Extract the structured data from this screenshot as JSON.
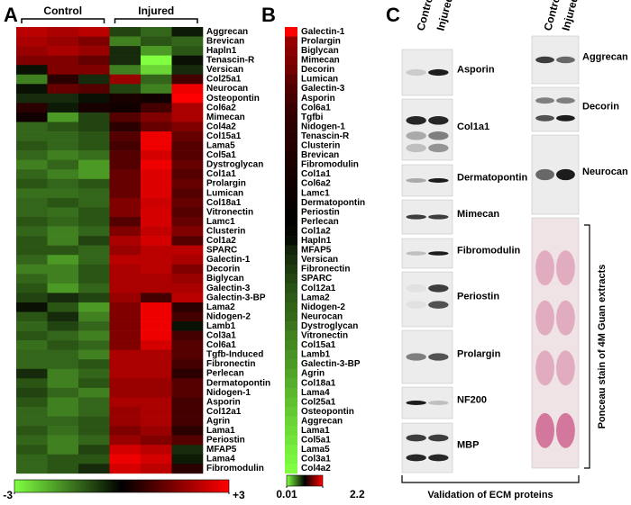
{
  "panel_labels": [
    "A",
    "B",
    "C"
  ],
  "chart_data": [
    {
      "type": "heatmap",
      "group_labels": [
        "Control",
        "Injured"
      ],
      "rows": [
        "Aggrecan",
        "Brevican",
        "Hapln1",
        "Tenascin-R",
        "Versican",
        "Col25a1",
        "Neurocan",
        "Osteopontin",
        "Col6a2",
        "Mimecan",
        "Col4a2",
        "Col15a1",
        "Lama5",
        "Col5a1",
        "Dystroglycan",
        "Col1a1",
        "Prolargin",
        "Lumican",
        "Col18a1",
        "Vitronectin",
        "Lamc1",
        "Clusterin",
        "Col1a2",
        "SPARC",
        "Galectin-1",
        "Decorin",
        "Biglycan",
        "Galectin-3",
        "Galectin-3-BP",
        "Lama2",
        "Nidogen-2",
        "Lamb1",
        "Col3a1",
        "Col6a1",
        "Tgfb-Induced",
        "Fibronectin",
        "Perlecan",
        "Dermatopontin",
        "Nidogen-1",
        "Asporin",
        "Col12a1",
        "Agrin",
        "Lama1",
        "Periostin",
        "MFAP5",
        "Lama4",
        "Fibromodulin"
      ],
      "values": [
        [
          2.2,
          2.0,
          2.2,
          -0.8,
          -1.2,
          -0.3
        ],
        [
          2.0,
          1.8,
          1.5,
          -1.5,
          -1.0,
          -1.2
        ],
        [
          1.8,
          2.0,
          1.8,
          -0.5,
          -1.8,
          -1.0
        ],
        [
          1.5,
          1.5,
          1.2,
          -0.5,
          -3,
          -0.2
        ],
        [
          -0.2,
          1.5,
          1.5,
          -1.5,
          -2.5,
          -0.5
        ],
        [
          -1.5,
          0.5,
          -0.5,
          1.8,
          -1.2,
          0.8
        ],
        [
          -0.2,
          1.2,
          1.0,
          -0.8,
          -1.5,
          2.8
        ],
        [
          -0.5,
          -0.5,
          -0.2,
          0.3,
          0.2,
          3
        ],
        [
          0.5,
          -0.3,
          0.3,
          0.2,
          0.8,
          2.0
        ],
        [
          0.2,
          -1.8,
          -0.8,
          1.0,
          1.5,
          2.0
        ],
        [
          -1.2,
          -1.0,
          -0.8,
          0.5,
          1.2,
          1.5
        ],
        [
          -1.2,
          -1.2,
          -1.0,
          1.0,
          2.8,
          1.2
        ],
        [
          -1.0,
          -1.2,
          -1.0,
          0.8,
          2.8,
          1.0
        ],
        [
          -1.2,
          -1.5,
          -1.3,
          1.0,
          2.5,
          1.0
        ],
        [
          -1.5,
          -1.2,
          -1.8,
          1.0,
          2.8,
          1.2
        ],
        [
          -1.2,
          -1.5,
          -1.8,
          1.2,
          2.6,
          1.0
        ],
        [
          -1.0,
          -1.2,
          -1.0,
          1.2,
          2.6,
          1.2
        ],
        [
          -1.3,
          -1.3,
          -1.2,
          1.2,
          2.6,
          1.0
        ],
        [
          -1.2,
          -1.0,
          -1.2,
          1.5,
          2.4,
          1.2
        ],
        [
          -1.2,
          -1.3,
          -1.0,
          1.5,
          2.5,
          1.0
        ],
        [
          -1.0,
          -1.2,
          -1.0,
          1.0,
          2.5,
          1.2
        ],
        [
          -1.2,
          -1.5,
          -1.2,
          1.5,
          2.3,
          1.5
        ],
        [
          -1.0,
          -1.5,
          -0.8,
          2.0,
          2.5,
          1.0
        ],
        [
          -1.0,
          -1.0,
          -1.2,
          1.8,
          2.2,
          2.2
        ],
        [
          -1.2,
          -1.8,
          -1.2,
          2.2,
          2.2,
          2.0
        ],
        [
          -1.5,
          -1.5,
          -1.0,
          2.0,
          2.2,
          1.5
        ],
        [
          -1.2,
          -1.5,
          -1.0,
          2.0,
          2.0,
          1.8
        ],
        [
          -1.0,
          -1.8,
          -1.2,
          2.0,
          2.0,
          2.0
        ],
        [
          -0.8,
          -0.5,
          -0.8,
          1.8,
          0.8,
          2.2
        ],
        [
          -0.2,
          -1.0,
          -1.8,
          1.5,
          2.8,
          0.5
        ],
        [
          -1.0,
          -0.5,
          -1.5,
          1.5,
          2.8,
          0.8
        ],
        [
          -1.2,
          -0.8,
          -1.2,
          1.5,
          2.8,
          -0.2
        ],
        [
          -1.0,
          -1.2,
          -1.5,
          1.5,
          2.8,
          0.8
        ],
        [
          -1.3,
          -1.0,
          -1.2,
          1.5,
          2.5,
          1.0
        ],
        [
          -1.2,
          -1.2,
          -1.5,
          2.0,
          2.0,
          1.0
        ],
        [
          -1.2,
          -1.2,
          -1.0,
          2.0,
          2.0,
          0.8
        ],
        [
          -0.5,
          -1.5,
          -1.2,
          2.0,
          2.0,
          0.5
        ],
        [
          -1.0,
          -1.5,
          -1.0,
          1.8,
          1.8,
          1.0
        ],
        [
          -0.8,
          -1.2,
          -1.5,
          1.8,
          1.8,
          1.0
        ],
        [
          -1.0,
          -1.5,
          -1.2,
          2.0,
          2.0,
          0.8
        ],
        [
          -1.2,
          -1.5,
          -1.2,
          1.8,
          2.0,
          0.8
        ],
        [
          -1.2,
          -1.2,
          -1.0,
          1.8,
          2.0,
          0.8
        ],
        [
          -1.0,
          -1.3,
          -1.0,
          1.5,
          1.8,
          0.5
        ],
        [
          -1.2,
          -1.5,
          -1.2,
          1.8,
          1.5,
          1.0
        ],
        [
          -1.0,
          -1.5,
          -0.8,
          2.5,
          2.2,
          -0.5
        ],
        [
          -1.2,
          -1.0,
          -1.0,
          2.8,
          2.5,
          -0.3
        ],
        [
          -1.2,
          -1.0,
          -0.5,
          2.5,
          2.2,
          0.5
        ]
      ],
      "colors": [
        "#80ff40",
        "#000000",
        "#ff0000"
      ],
      "zlim": [
        -3,
        3
      ],
      "zticks": [
        -3,
        {
          "value": 3,
          "label": "+3"
        }
      ]
    },
    {
      "type": "heatmap",
      "rows": [
        "Galectin-1",
        "Prolargin",
        "Biglycan",
        "Mimecan",
        "Decorin",
        "Lumican",
        "Galectin-3",
        "Asporin",
        "Col6a1",
        "Tgfbi",
        "Nidogen-1",
        "Tenascin-R",
        "Clusterin",
        "Brevican",
        "Fibromodulin",
        "Col1a1",
        "Col6a2",
        "Lamc1",
        "Dermatopontin",
        "Periostin",
        "Perlecan",
        "Col1a2",
        "Hapln1",
        "MFAP5",
        "Versican",
        "Fibronectin",
        "SPARC",
        "Col12a1",
        "Lama2",
        "Nidogen-2",
        "Neurocan",
        "Dystroglycan",
        "Vitronectin",
        "Col15a1",
        "Lamb1",
        "Galectin-3-BP",
        "Agrin",
        "Col18a1",
        "Lama4",
        "Col25a1",
        "Osteopontin",
        "Aggrecan",
        "Lama1",
        "Col5a1",
        "Lama5",
        "Col3a1",
        "Col4a2"
      ],
      "values": [
        2.2,
        1.75,
        1.7,
        1.65,
        1.6,
        1.5,
        1.45,
        1.4,
        1.35,
        1.32,
        1.3,
        1.28,
        1.26,
        1.24,
        1.22,
        1.2,
        1.18,
        1.16,
        1.14,
        1.12,
        1.1,
        1.08,
        1.05,
        0.95,
        0.9,
        0.85,
        0.8,
        0.75,
        0.72,
        0.68,
        0.65,
        0.6,
        0.55,
        0.52,
        0.48,
        0.45,
        0.4,
        0.36,
        0.32,
        0.28,
        0.24,
        0.2,
        0.16,
        0.12,
        0.08,
        0.05,
        0.01
      ],
      "colors": [
        "#80ff40",
        "#000000",
        "#ff0000"
      ],
      "zlim": [
        0.01,
        2.2
      ],
      "zticks": [
        0.01,
        2.2
      ]
    }
  ],
  "blots": {
    "lane_labels": [
      "Control",
      "Injured"
    ],
    "left": [
      "Asporin",
      "Col1a1",
      "Dermatopontin",
      "Mimecan",
      "Fibromodulin",
      "Periostin",
      "Prolargin",
      "NF200",
      "MBP"
    ],
    "right": [
      "Aggrecan",
      "Decorin",
      "Neurocan"
    ],
    "ponceau_label": "Ponceau stain of 4M Guan extracts",
    "caption": "Validation of ECM proteins"
  }
}
